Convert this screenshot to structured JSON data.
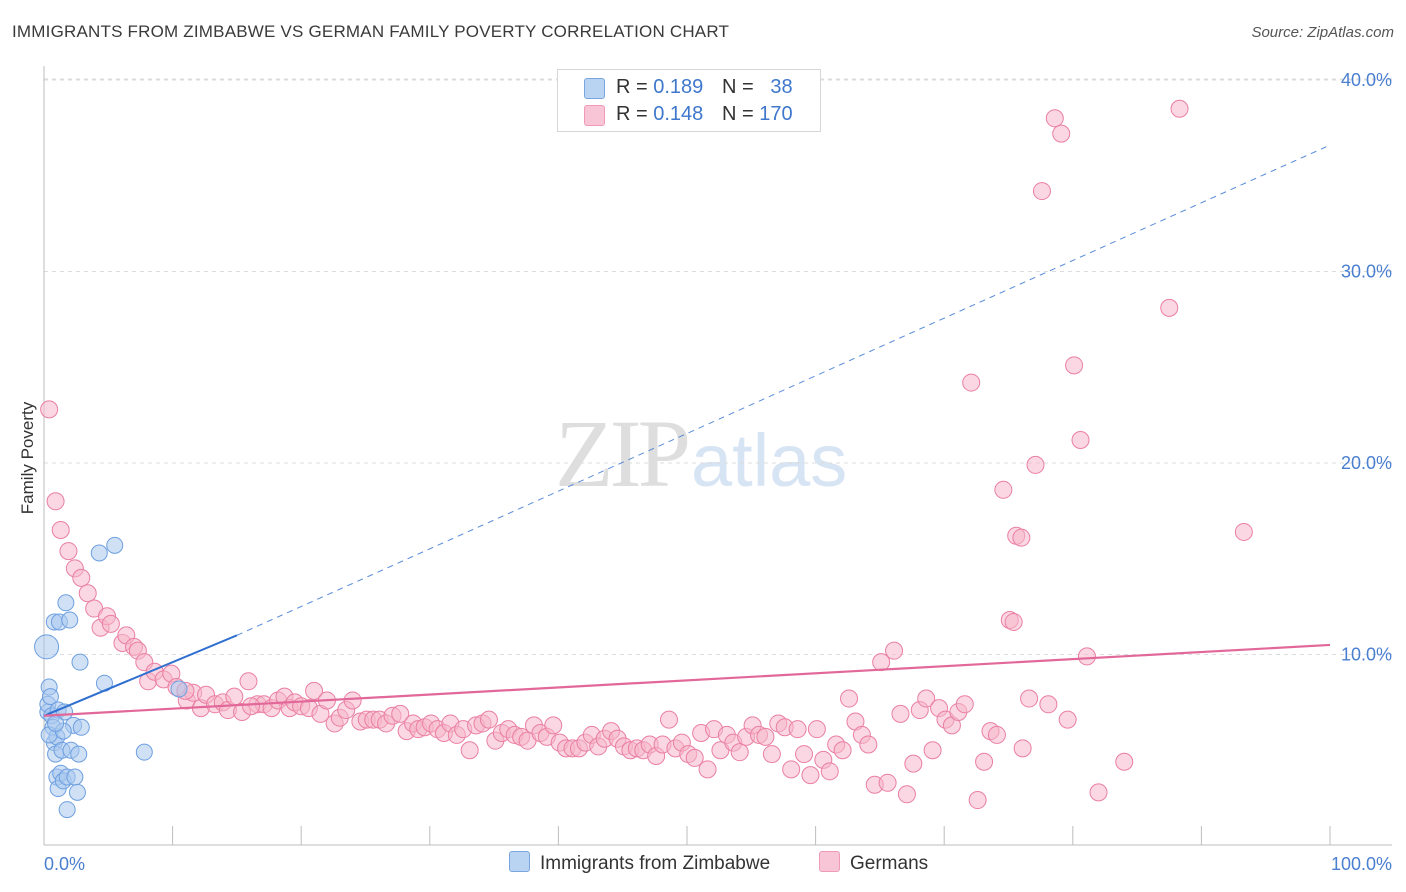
{
  "title": "IMMIGRANTS FROM ZIMBABWE VS GERMAN FAMILY POVERTY CORRELATION CHART",
  "source": "Source: ZipAtlas.com",
  "watermark": {
    "zip": "ZIP",
    "atlas": "atlas"
  },
  "legend_top": [
    {
      "r_label": "R =",
      "r_value": "0.189",
      "n_label": "N =",
      "n_value": "38"
    },
    {
      "r_label": "R =",
      "r_value": "0.148",
      "n_label": "N =",
      "n_value": "170"
    }
  ],
  "legend_bottom": [
    {
      "label": "Immigrants from Zimbabwe"
    },
    {
      "label": "Germans"
    }
  ],
  "chart_data": {
    "type": "scatter",
    "ylabel": "Family Poverty",
    "x_ticks": [
      "0.0%",
      "100.0%"
    ],
    "y_ticks": [
      "10.0%",
      "20.0%",
      "30.0%",
      "40.0%"
    ],
    "xlim": [
      0,
      100
    ],
    "ylim": [
      0,
      41.5
    ],
    "grid": "horizontal dashed",
    "colors": {
      "blue_fill": "#a9c8ef",
      "blue_stroke": "#6d9fe0",
      "blue_line": "#2f6fd0",
      "pink_fill": "#f5b6cb",
      "pink_stroke": "#ea7fa3",
      "pink_line": "#e2689a"
    },
    "series": [
      {
        "name": "Immigrants from Zimbabwe",
        "color": "#a9c8ef",
        "trend": {
          "x": [
            0,
            15
          ],
          "y": [
            6.8,
            11.0
          ],
          "dashed_to": [
            100,
            36.6
          ]
        },
        "points": [
          [
            0.2,
            10.4
          ],
          [
            0.3,
            7.0
          ],
          [
            0.3,
            7.4
          ],
          [
            0.4,
            8.3
          ],
          [
            0.5,
            7.8
          ],
          [
            0.6,
            6.8
          ],
          [
            0.7,
            6.2
          ],
          [
            0.8,
            5.4
          ],
          [
            0.8,
            11.7
          ],
          [
            0.9,
            4.8
          ],
          [
            1.0,
            3.6
          ],
          [
            1.0,
            5.7
          ],
          [
            1.1,
            7.1
          ],
          [
            1.1,
            3.0
          ],
          [
            1.2,
            11.7
          ],
          [
            1.3,
            3.8
          ],
          [
            1.4,
            5.0
          ],
          [
            1.5,
            3.4
          ],
          [
            1.6,
            7.0
          ],
          [
            1.7,
            12.7
          ],
          [
            1.8,
            3.6
          ],
          [
            1.8,
            1.9
          ],
          [
            2.0,
            11.8
          ],
          [
            2.1,
            5.0
          ],
          [
            2.3,
            6.3
          ],
          [
            2.4,
            3.6
          ],
          [
            2.6,
            2.8
          ],
          [
            2.7,
            4.8
          ],
          [
            2.8,
            9.6
          ],
          [
            2.9,
            6.2
          ],
          [
            4.3,
            15.3
          ],
          [
            4.7,
            8.5
          ],
          [
            5.5,
            15.7
          ],
          [
            7.8,
            4.9
          ],
          [
            10.5,
            8.2
          ],
          [
            0.4,
            5.8
          ],
          [
            1.5,
            6.0
          ],
          [
            0.9,
            6.4
          ]
        ]
      },
      {
        "name": "Germans",
        "color": "#f5b6cb",
        "trend": {
          "x": [
            0,
            100
          ],
          "y": [
            6.8,
            10.5
          ]
        },
        "points": [
          [
            0.4,
            22.8
          ],
          [
            0.9,
            18.0
          ],
          [
            1.3,
            16.5
          ],
          [
            1.9,
            15.4
          ],
          [
            2.4,
            14.5
          ],
          [
            2.9,
            14.0
          ],
          [
            3.4,
            13.2
          ],
          [
            3.9,
            12.4
          ],
          [
            4.4,
            11.4
          ],
          [
            4.9,
            12.0
          ],
          [
            5.2,
            11.6
          ],
          [
            6.1,
            10.6
          ],
          [
            6.4,
            11.0
          ],
          [
            7.0,
            10.4
          ],
          [
            7.3,
            10.2
          ],
          [
            7.8,
            9.6
          ],
          [
            8.1,
            8.6
          ],
          [
            8.6,
            9.1
          ],
          [
            9.3,
            8.7
          ],
          [
            9.9,
            9.0
          ],
          [
            10.3,
            8.3
          ],
          [
            11.1,
            7.6
          ],
          [
            11.6,
            8.0
          ],
          [
            12.2,
            7.2
          ],
          [
            12.6,
            7.9
          ],
          [
            13.3,
            7.4
          ],
          [
            13.9,
            7.5
          ],
          [
            14.3,
            7.1
          ],
          [
            14.8,
            7.8
          ],
          [
            15.4,
            7.0
          ],
          [
            15.9,
            8.6
          ],
          [
            16.6,
            7.4
          ],
          [
            17.1,
            7.4
          ],
          [
            17.7,
            7.2
          ],
          [
            18.2,
            7.6
          ],
          [
            18.7,
            7.8
          ],
          [
            19.1,
            7.2
          ],
          [
            19.5,
            7.5
          ],
          [
            20.0,
            7.3
          ],
          [
            20.6,
            7.2
          ],
          [
            21.0,
            8.1
          ],
          [
            21.5,
            6.9
          ],
          [
            22.0,
            7.6
          ],
          [
            22.6,
            6.4
          ],
          [
            23.0,
            6.7
          ],
          [
            23.5,
            7.1
          ],
          [
            24.0,
            7.6
          ],
          [
            24.6,
            6.5
          ],
          [
            25.1,
            6.6
          ],
          [
            25.6,
            6.6
          ],
          [
            26.1,
            6.6
          ],
          [
            26.6,
            6.4
          ],
          [
            27.1,
            6.8
          ],
          [
            27.7,
            6.9
          ],
          [
            28.2,
            6.0
          ],
          [
            28.7,
            6.4
          ],
          [
            29.1,
            6.1
          ],
          [
            29.6,
            6.2
          ],
          [
            30.1,
            6.4
          ],
          [
            30.6,
            6.1
          ],
          [
            31.1,
            5.9
          ],
          [
            31.6,
            6.4
          ],
          [
            32.1,
            5.8
          ],
          [
            32.6,
            6.1
          ],
          [
            33.1,
            5.0
          ],
          [
            33.6,
            6.3
          ],
          [
            34.1,
            6.4
          ],
          [
            34.6,
            6.6
          ],
          [
            35.1,
            5.5
          ],
          [
            35.6,
            5.9
          ],
          [
            36.1,
            6.1
          ],
          [
            36.6,
            5.8
          ],
          [
            37.1,
            5.7
          ],
          [
            37.6,
            5.5
          ],
          [
            38.1,
            6.3
          ],
          [
            38.6,
            5.9
          ],
          [
            39.1,
            5.7
          ],
          [
            39.6,
            6.3
          ],
          [
            40.1,
            5.4
          ],
          [
            40.6,
            5.1
          ],
          [
            41.1,
            5.1
          ],
          [
            41.6,
            5.1
          ],
          [
            42.1,
            5.4
          ],
          [
            42.6,
            5.8
          ],
          [
            43.1,
            5.2
          ],
          [
            43.6,
            5.6
          ],
          [
            44.1,
            6.0
          ],
          [
            44.6,
            5.6
          ],
          [
            45.1,
            5.2
          ],
          [
            45.6,
            5.0
          ],
          [
            46.1,
            5.1
          ],
          [
            46.6,
            5.0
          ],
          [
            47.1,
            5.3
          ],
          [
            47.6,
            4.7
          ],
          [
            48.1,
            5.3
          ],
          [
            48.6,
            6.6
          ],
          [
            49.1,
            5.1
          ],
          [
            49.6,
            5.4
          ],
          [
            50.1,
            4.8
          ],
          [
            50.6,
            4.6
          ],
          [
            51.1,
            5.9
          ],
          [
            51.6,
            4.0
          ],
          [
            52.1,
            6.1
          ],
          [
            52.6,
            5.0
          ],
          [
            53.1,
            5.8
          ],
          [
            53.6,
            5.4
          ],
          [
            54.1,
            4.9
          ],
          [
            54.6,
            5.7
          ],
          [
            55.1,
            6.3
          ],
          [
            55.6,
            5.8
          ],
          [
            56.1,
            5.7
          ],
          [
            56.6,
            4.8
          ],
          [
            57.1,
            6.4
          ],
          [
            57.6,
            6.2
          ],
          [
            58.1,
            4.0
          ],
          [
            58.6,
            6.1
          ],
          [
            59.1,
            4.8
          ],
          [
            59.6,
            3.7
          ],
          [
            60.1,
            6.1
          ],
          [
            60.6,
            4.5
          ],
          [
            61.1,
            3.9
          ],
          [
            61.6,
            5.3
          ],
          [
            62.1,
            5.0
          ],
          [
            62.6,
            7.7
          ],
          [
            63.1,
            6.5
          ],
          [
            63.6,
            5.8
          ],
          [
            64.1,
            5.3
          ],
          [
            64.6,
            3.2
          ],
          [
            65.1,
            9.6
          ],
          [
            65.6,
            3.3
          ],
          [
            66.1,
            10.2
          ],
          [
            66.6,
            6.9
          ],
          [
            67.1,
            2.7
          ],
          [
            67.6,
            4.3
          ],
          [
            68.1,
            7.1
          ],
          [
            68.6,
            7.7
          ],
          [
            69.1,
            5.0
          ],
          [
            69.6,
            7.2
          ],
          [
            70.1,
            6.6
          ],
          [
            70.6,
            6.3
          ],
          [
            71.1,
            7.0
          ],
          [
            71.6,
            7.4
          ],
          [
            72.1,
            24.2
          ],
          [
            72.6,
            2.4
          ],
          [
            73.1,
            4.4
          ],
          [
            73.6,
            6.0
          ],
          [
            74.1,
            5.8
          ],
          [
            74.6,
            18.6
          ],
          [
            75.1,
            11.8
          ],
          [
            75.6,
            16.2
          ],
          [
            76.1,
            5.1
          ],
          [
            76.6,
            7.7
          ],
          [
            77.1,
            19.9
          ],
          [
            77.6,
            34.2
          ],
          [
            78.1,
            7.4
          ],
          [
            78.6,
            38.0
          ],
          [
            79.1,
            37.2
          ],
          [
            79.6,
            6.6
          ],
          [
            80.1,
            25.1
          ],
          [
            80.6,
            21.2
          ],
          [
            81.1,
            9.9
          ],
          [
            82.0,
            2.8
          ],
          [
            84.0,
            4.4
          ],
          [
            87.5,
            28.1
          ],
          [
            88.3,
            38.5
          ],
          [
            93.3,
            16.4
          ],
          [
            11.0,
            8.1
          ],
          [
            16.1,
            7.3
          ],
          [
            76.0,
            16.1
          ],
          [
            75.4,
            11.7
          ]
        ]
      }
    ]
  }
}
